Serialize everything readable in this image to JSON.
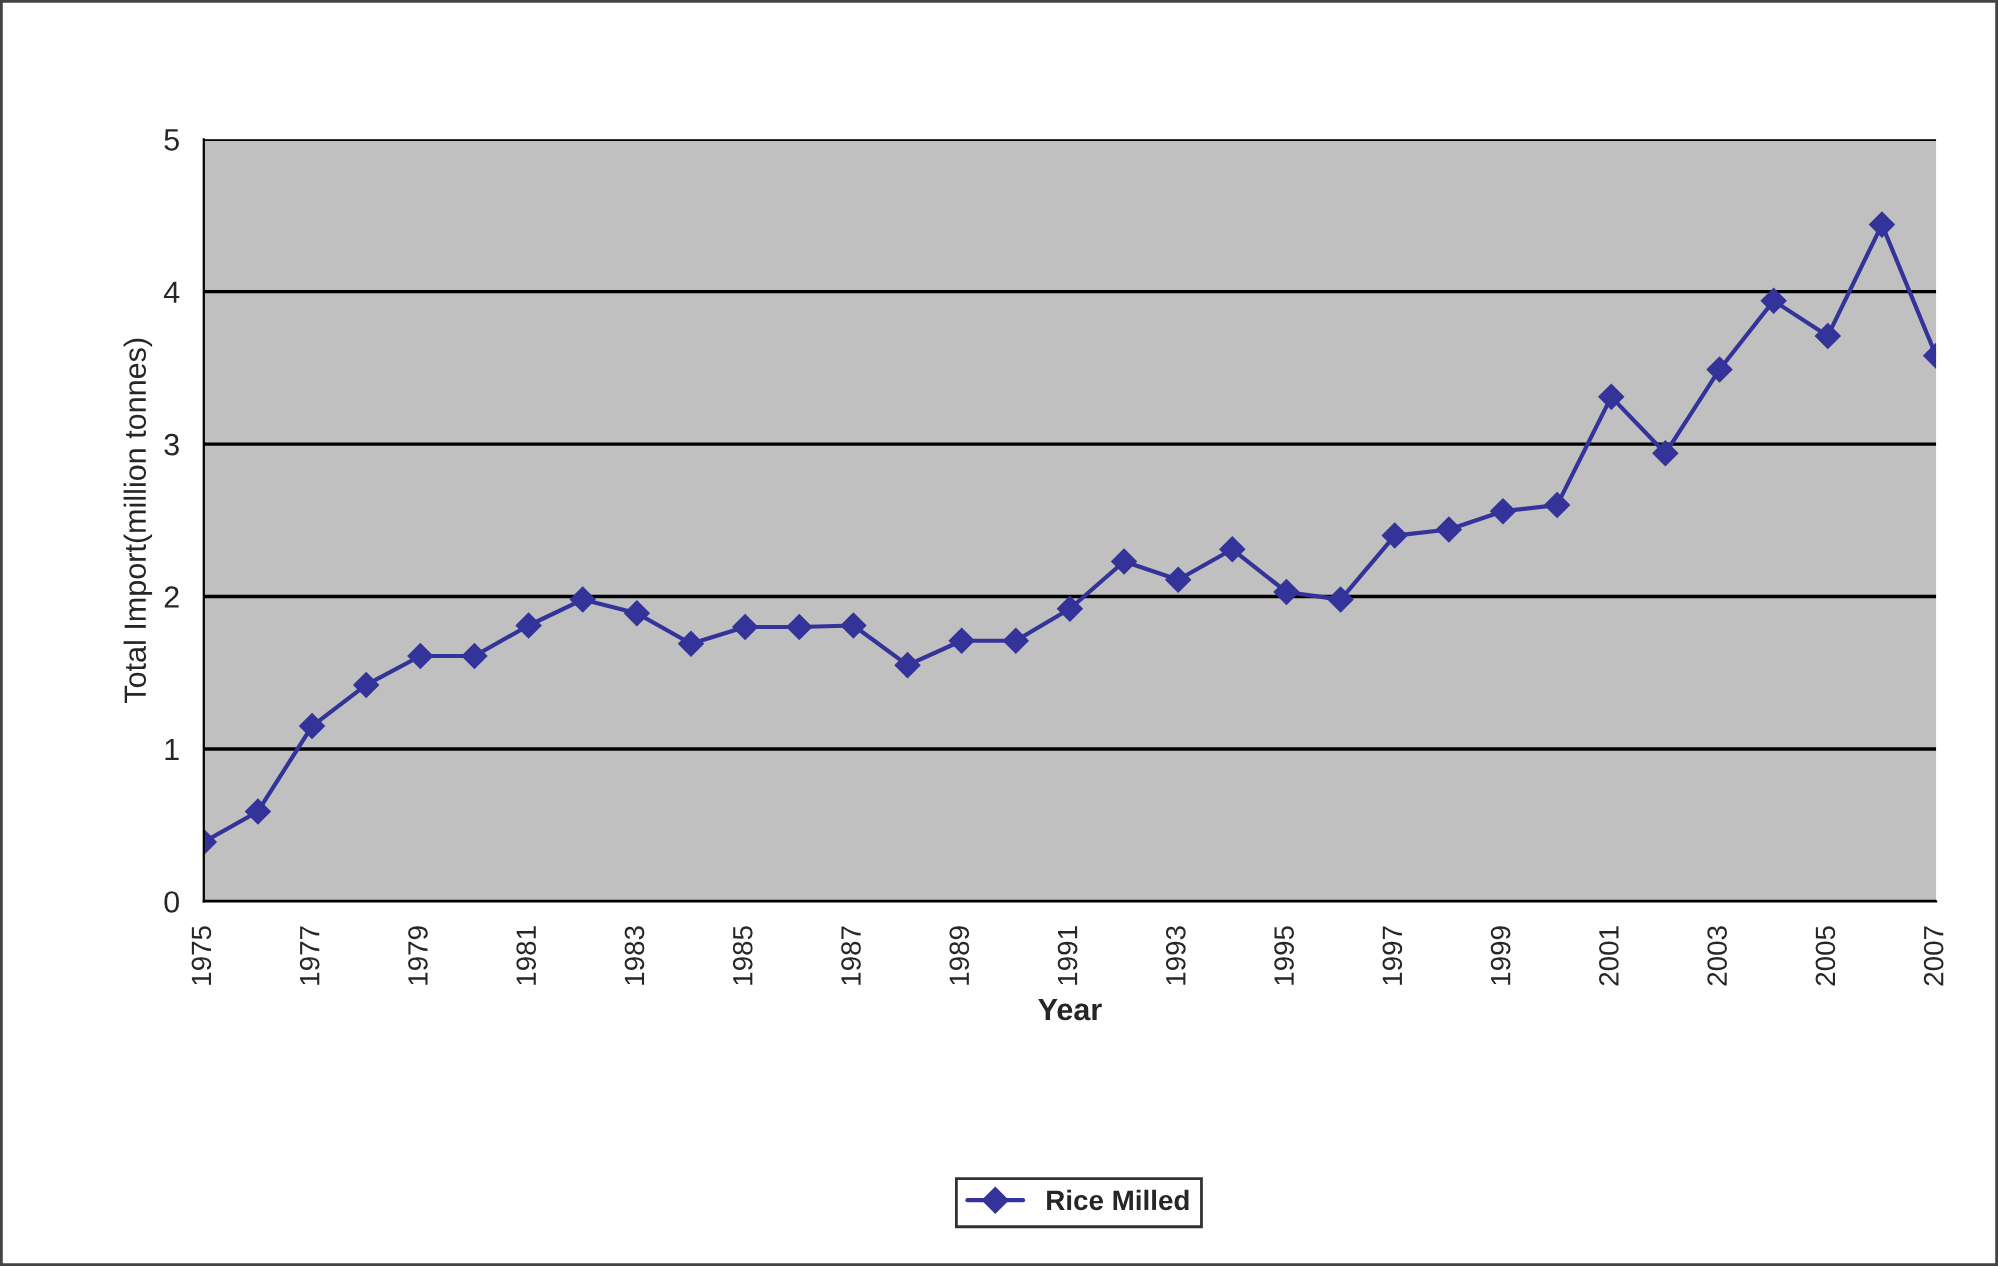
{
  "chart_data": {
    "type": "line",
    "xlabel": "Year",
    "ylabel": "Total Import(million tonnes)",
    "categories": [
      "1975",
      null,
      "1977",
      null,
      "1979",
      null,
      "1981",
      null,
      "1983",
      null,
      "1985",
      null,
      "1987",
      null,
      "1989",
      null,
      "1991",
      null,
      "1993",
      null,
      "1995",
      null,
      "1997",
      null,
      "1999",
      null,
      "2001",
      null,
      "2003",
      null,
      "2005",
      null,
      "2007"
    ],
    "series": [
      {
        "name": "Rice Milled",
        "color": "#333399",
        "values": [
          0.39,
          0.59,
          1.15,
          1.42,
          1.61,
          1.61,
          1.81,
          1.98,
          1.89,
          1.69,
          1.8,
          1.8,
          1.81,
          1.55,
          1.71,
          1.71,
          1.92,
          2.23,
          2.11,
          2.31,
          2.03,
          1.98,
          2.4,
          2.44,
          2.56,
          2.6,
          3.31,
          2.94,
          3.49,
          3.94,
          3.71,
          4.44,
          3.58
        ]
      }
    ],
    "ylim": [
      0,
      5
    ],
    "yticks": [
      0,
      1,
      2,
      3,
      4,
      5
    ],
    "grid": "y",
    "legend": "bottom",
    "marker": "diamond",
    "line_style": "solid"
  }
}
